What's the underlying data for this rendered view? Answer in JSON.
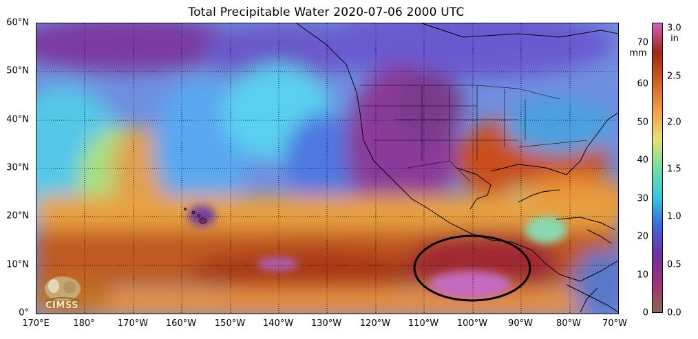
{
  "title": "Total Precipitable Water  2020-07-06 2000 UTC",
  "map": {
    "lat_labels": [
      "60°N",
      "50°N",
      "40°N",
      "30°N",
      "20°N",
      "10°N",
      "0°"
    ],
    "lon_labels": [
      "170°E",
      "180°",
      "170°W",
      "160°W",
      "150°W",
      "140°W",
      "130°W",
      "120°W",
      "110°W",
      "100°W",
      "90°W",
      "80°W",
      "70°W"
    ],
    "lat_range": [
      0,
      60
    ],
    "lon_range": [
      "170°E",
      "70°W"
    ],
    "grid": true,
    "annotation": "black ellipse near 100°W, 8°N",
    "logo_text": "CIMSS"
  },
  "colorbar": {
    "mm_ticks": [
      "0",
      "10",
      "20",
      "30",
      "40",
      "50",
      "60",
      "70"
    ],
    "mm_unit": "mm",
    "in_ticks": [
      "0.0",
      "0.5",
      "1.0",
      "1.5",
      "2.0",
      "2.5",
      "3.0"
    ],
    "in_unit": "in",
    "mm_range": [
      0,
      76
    ],
    "colors": [
      "#8a6a50",
      "#a0307a",
      "#7030a0",
      "#3a6ad8",
      "#38c8e0",
      "#70e0a0",
      "#e8e070",
      "#f0a040",
      "#d06020",
      "#a02818",
      "#d060c0"
    ]
  }
}
